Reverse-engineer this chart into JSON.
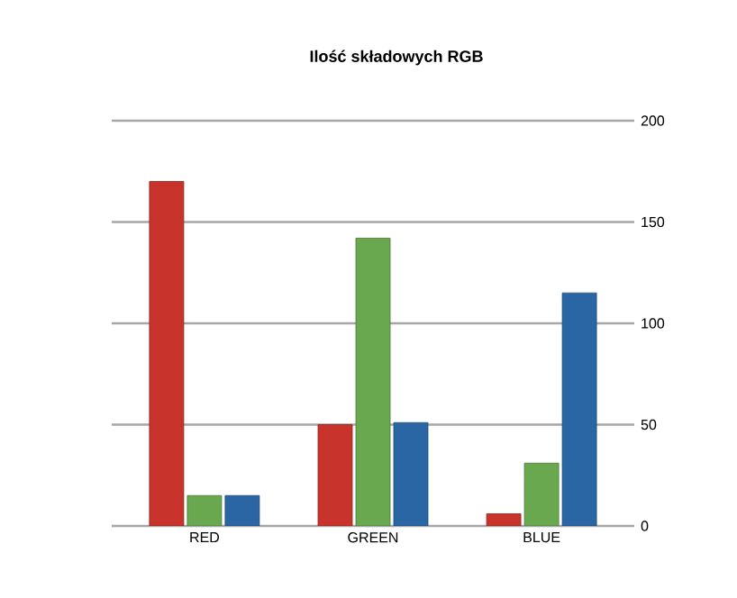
{
  "chart_data": {
    "type": "bar",
    "title": "Ilość składowych RGB",
    "categories": [
      "RED",
      "GREEN",
      "BLUE"
    ],
    "series": [
      {
        "color": "#c8342c",
        "values": [
          170,
          50,
          6
        ]
      },
      {
        "color": "#6aa84f",
        "values": [
          15,
          142,
          31
        ]
      },
      {
        "color": "#2a66a3",
        "values": [
          15,
          51,
          115
        ]
      }
    ],
    "ylim": [
      0,
      200
    ],
    "yticks": [
      0,
      50,
      100,
      150,
      200
    ],
    "grid": "y"
  }
}
